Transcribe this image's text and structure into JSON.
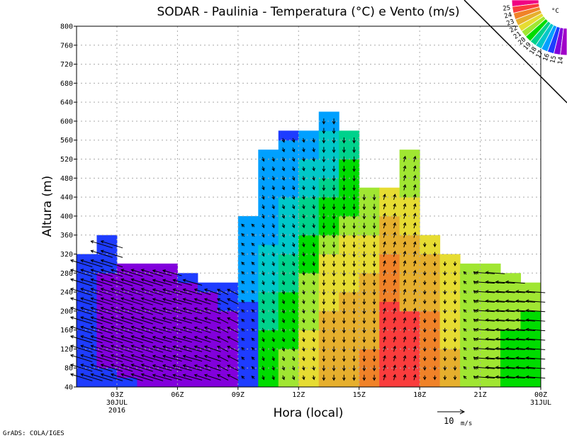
{
  "chart_data": {
    "type": "heatmap",
    "title": "SODAR - Paulinia - Temperatura (°C) e Vento (m/s)",
    "xlabel": "Hora (local)",
    "ylabel": "Altura (m)",
    "footer": "GrADS: COLA/IGES",
    "ylim": [
      40,
      800
    ],
    "yticks": [
      40,
      80,
      120,
      160,
      200,
      240,
      280,
      320,
      360,
      400,
      440,
      480,
      520,
      560,
      600,
      640,
      680,
      720,
      760,
      800
    ],
    "xlim_hours": [
      1,
      24
    ],
    "xticks": [
      {
        "hour": 3,
        "lines": [
          "03Z",
          "30JUL",
          "2016"
        ]
      },
      {
        "hour": 6,
        "lines": [
          "06Z"
        ]
      },
      {
        "hour": 9,
        "lines": [
          "09Z"
        ]
      },
      {
        "hour": 12,
        "lines": [
          "12Z"
        ]
      },
      {
        "hour": 15,
        "lines": [
          "15Z"
        ]
      },
      {
        "hour": 18,
        "lines": [
          "18Z"
        ]
      },
      {
        "hour": 21,
        "lines": [
          "21Z"
        ]
      },
      {
        "hour": 24,
        "lines": [
          "00Z",
          "31JUL"
        ]
      }
    ],
    "grid": true,
    "colorbar": {
      "unit": "°C",
      "levels": [
        14,
        15,
        16,
        17,
        18,
        19,
        20,
        21,
        22,
        23,
        24,
        25
      ],
      "colors": [
        "#a000c8",
        "#8200dc",
        "#1e3cff",
        "#00a0ff",
        "#00c8c8",
        "#00d28c",
        "#00dc00",
        "#a0e632",
        "#e6dc32",
        "#e6af2d",
        "#f08228",
        "#fa3c3c",
        "#f00082"
      ]
    },
    "temperature_columns": [
      {
        "hour": 1,
        "segments": [
          [
            320,
            15.5
          ]
        ]
      },
      {
        "hour": 2,
        "segments": [
          [
            80,
            15.5
          ],
          [
            280,
            14.5
          ],
          [
            360,
            15.5
          ]
        ]
      },
      {
        "hour": 3,
        "segments": [
          [
            60,
            15.5
          ],
          [
            300,
            14.5
          ]
        ]
      },
      {
        "hour": 4,
        "segments": [
          [
            300,
            14.5
          ]
        ]
      },
      {
        "hour": 5,
        "segments": [
          [
            300,
            14.5
          ]
        ]
      },
      {
        "hour": 6,
        "segments": [
          [
            260,
            14.5
          ],
          [
            280,
            15.5
          ]
        ]
      },
      {
        "hour": 7,
        "segments": [
          [
            240,
            14.5
          ],
          [
            260,
            15.5
          ]
        ]
      },
      {
        "hour": 8,
        "segments": [
          [
            200,
            14.5
          ],
          [
            260,
            15.5
          ]
        ]
      },
      {
        "hour": 9,
        "segments": [
          [
            220,
            15.5
          ],
          [
            400,
            16.5
          ]
        ]
      },
      {
        "hour": 10,
        "segments": [
          [
            160,
            19.5
          ],
          [
            240,
            18.5
          ],
          [
            340,
            17.5
          ],
          [
            540,
            16.5
          ]
        ]
      },
      {
        "hour": 11,
        "segments": [
          [
            120,
            20.5
          ],
          [
            240,
            19.5
          ],
          [
            320,
            18.5
          ],
          [
            440,
            17.5
          ],
          [
            560,
            16.5
          ],
          [
            580,
            15.5
          ]
        ]
      },
      {
        "hour": 12,
        "segments": [
          [
            160,
            21.5
          ],
          [
            280,
            20.5
          ],
          [
            360,
            19.5
          ],
          [
            440,
            18.5
          ],
          [
            520,
            17.5
          ],
          [
            580,
            16.5
          ]
        ]
      },
      {
        "hour": 13,
        "segments": [
          [
            200,
            22.5
          ],
          [
            320,
            21.5
          ],
          [
            360,
            20.5
          ],
          [
            440,
            19.5
          ],
          [
            480,
            18.5
          ],
          [
            580,
            17.5
          ],
          [
            620,
            16.5
          ]
        ]
      },
      {
        "hour": 14,
        "segments": [
          [
            240,
            22.5
          ],
          [
            360,
            21.5
          ],
          [
            400,
            20.5
          ],
          [
            520,
            19.5
          ],
          [
            580,
            18.5
          ]
        ]
      },
      {
        "hour": 15,
        "segments": [
          [
            120,
            23.5
          ],
          [
            280,
            22.5
          ],
          [
            360,
            21.5
          ],
          [
            460,
            20.5
          ]
        ]
      },
      {
        "hour": 16,
        "segments": [
          [
            220,
            24.5
          ],
          [
            320,
            23.5
          ],
          [
            400,
            22.5
          ],
          [
            460,
            21.5
          ]
        ]
      },
      {
        "hour": 17,
        "segments": [
          [
            200,
            24.5
          ],
          [
            360,
            22.5
          ],
          [
            440,
            21.5
          ],
          [
            540,
            20.5
          ]
        ]
      },
      {
        "hour": 18,
        "segments": [
          [
            200,
            23.5
          ],
          [
            320,
            22.5
          ],
          [
            360,
            21.5
          ]
        ]
      },
      {
        "hour": 19,
        "segments": [
          [
            120,
            22.5
          ],
          [
            320,
            21.5
          ]
        ]
      },
      {
        "hour": 20,
        "segments": [
          [
            300,
            20.5
          ]
        ]
      },
      {
        "hour": 21,
        "segments": [
          [
            300,
            20.5
          ]
        ]
      },
      {
        "hour": 22,
        "segments": [
          [
            160,
            19.5
          ],
          [
            280,
            20.5
          ]
        ]
      },
      {
        "hour": 23,
        "segments": [
          [
            200,
            19.5
          ],
          [
            260,
            20.5
          ]
        ]
      }
    ],
    "wind_ms_by_hour": [
      {
        "hour": 1,
        "u": -8,
        "v": 2.5
      },
      {
        "hour": 2,
        "u": -8,
        "v": 2.5
      },
      {
        "hour": 3,
        "u": -8,
        "v": 2.5
      },
      {
        "hour": 4,
        "u": -8,
        "v": 2.5
      },
      {
        "hour": 5,
        "u": -7,
        "v": 2
      },
      {
        "hour": 6,
        "u": -7,
        "v": 2
      },
      {
        "hour": 7,
        "u": -6,
        "v": 2
      },
      {
        "hour": 8,
        "u": -4,
        "v": 2
      },
      {
        "hour": 9,
        "u": -1,
        "v": 1
      },
      {
        "hour": 10,
        "u": 0.5,
        "v": -1.5
      },
      {
        "hour": 11,
        "u": 0.5,
        "v": -1.5
      },
      {
        "hour": 12,
        "u": 0.3,
        "v": -1.5
      },
      {
        "hour": 13,
        "u": 0,
        "v": -2
      },
      {
        "hour": 14,
        "u": 0,
        "v": -2
      },
      {
        "hour": 15,
        "u": 0,
        "v": -2
      },
      {
        "hour": 16,
        "u": 0.5,
        "v": 2
      },
      {
        "hour": 17,
        "u": 0.5,
        "v": 2
      },
      {
        "hour": 18,
        "u": 0,
        "v": -1.5
      },
      {
        "hour": 19,
        "u": 0,
        "v": -1.5
      },
      {
        "hour": 20,
        "u": -1,
        "v": 1
      },
      {
        "hour": 21,
        "u": -7,
        "v": 0.5
      },
      {
        "hour": 22,
        "u": -7,
        "v": 0.5
      },
      {
        "hour": 23,
        "u": -7,
        "v": 0.5
      }
    ],
    "wind_reference": {
      "value": 10,
      "label": "10",
      "unit": "m/s"
    }
  }
}
